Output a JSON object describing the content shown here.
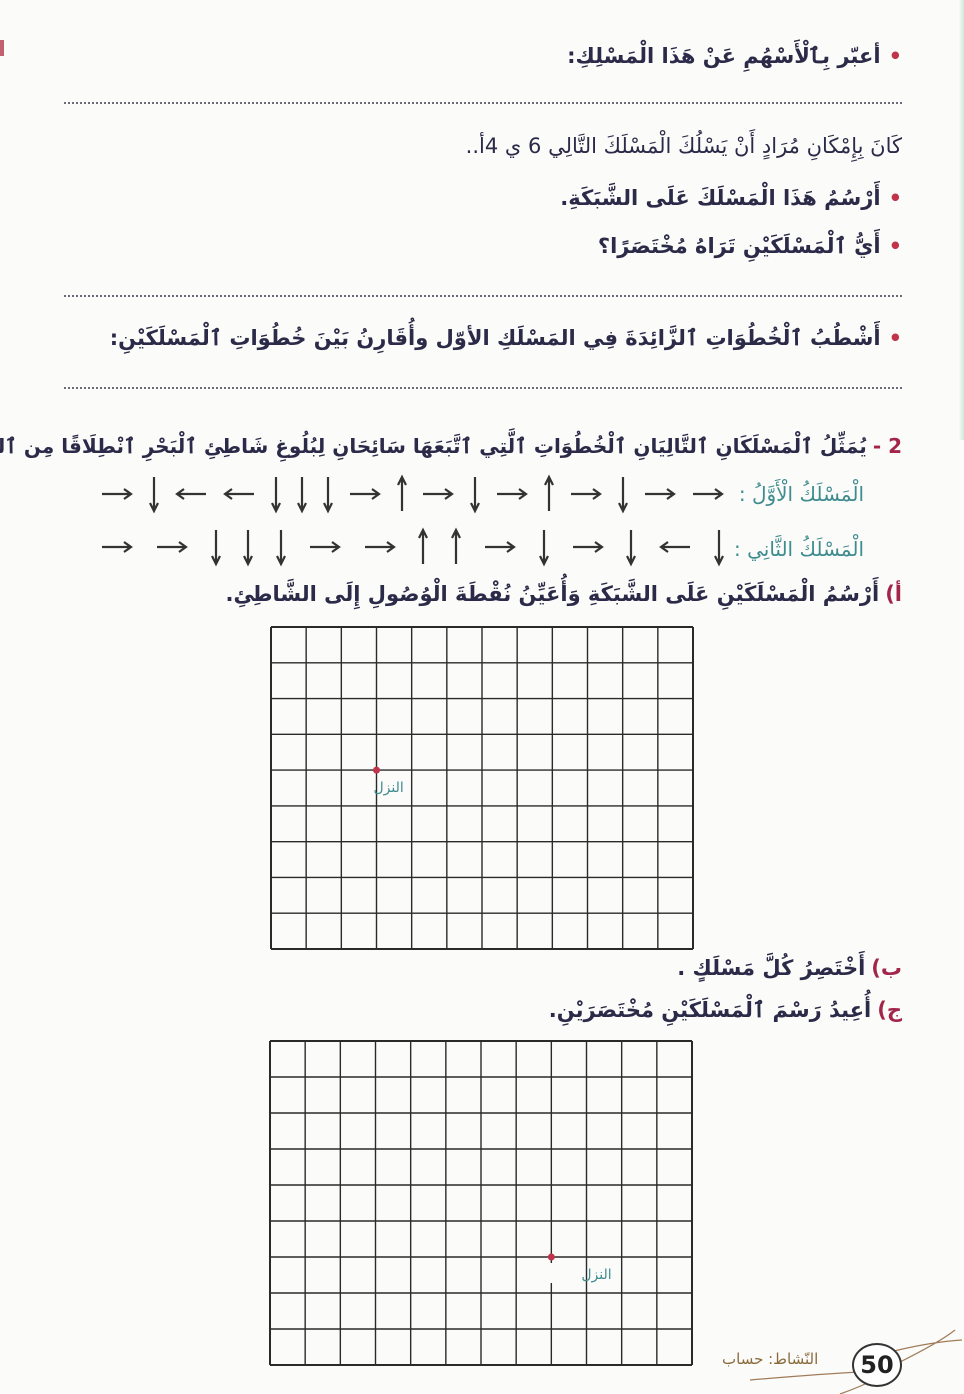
{
  "q1": {
    "express_with_arrows": "أعبّر بِٱلْأَسْهُمِ عَنْ هَذَا الْمَسْلِكِ:",
    "intro": "كَانَ بِإِمْكَانِ مُرَادٍ أَنْ يَسْلُكَ الْمَسْلَكَ التَّالِي 6 ي 4أ..",
    "draw_on_grid": "أَرْسُمُ هَذَا الْمَسْلَكَ عَلَى الشَّبَكَةِ.",
    "which_shorter": "أَيُّ ٱلْمَسْلَكَيْنِ تَرَاهُ مُخْتَصَرًا؟",
    "cross_out": "أَشْطُبُ ٱلْخُطُوَاتِ ٱلزَّائِدَةَ فِي المَسْلَكِ الأوّل وأُقَارِنُ بَيْنَ خُطُوَاتِ ٱلْمَسْلَكَيْنِ:"
  },
  "q2": {
    "number": "2 -",
    "statement": "يُمَثِّلُ ٱلْمَسْلَكَانِ ٱلتَّالِيَانِ ٱلْخُطُوَاتِ ٱلَّتِي ٱتَّبَعَهَا سَائِحَانِ لِبُلُوغِ شَاطِئِ ٱلْبَحْرِ ٱنْطِلَاقًا مِن ٱلنُّزُلِ.",
    "path1": {
      "label": "الْمَسْلَكُ الْأَوَّلُ :",
      "arrows_left_to_right": [
        "right",
        "down",
        "left",
        "left",
        "down",
        "down",
        "down",
        "right",
        "up",
        "right",
        "down",
        "right",
        "up",
        "right",
        "down",
        "right",
        "right"
      ]
    },
    "path2": {
      "label": "الْمَسْلَكُ الثَّانِي :",
      "arrows_left_to_right": [
        "right",
        "right",
        "down",
        "down",
        "down",
        "right",
        "right",
        "up",
        "up",
        "right",
        "down",
        "right",
        "down",
        "left",
        "down"
      ]
    },
    "part_a": {
      "marker": "أ)",
      "text": "أَرْسُمُ الْمَسْلَكَيْنِ عَلَى الشَّبَكَةِ وَأُعَيِّنُ نُقْطَةَ الْوُصُولِ إِلَى الشَّاطِئِ."
    },
    "part_b": {
      "marker": "ب)",
      "text": "أَخْتَصِرُ كُلَّ مَسْلَكٍ ."
    },
    "part_c": {
      "marker": "ج)",
      "text": "أُعِيدُ رَسْمَ ٱلْمَسْلَكَيْنِ مُخْتَصَرَيْنِ."
    },
    "grid1": {
      "columns": 12,
      "rows": 9,
      "start_label": "النزل",
      "start_col": 3,
      "start_row": 4
    },
    "grid2": {
      "columns": 12,
      "rows": 9,
      "start_label": "النزل",
      "start_col": 8,
      "start_row": 6
    }
  },
  "footer": {
    "activity": "النّشاط: حساب",
    "page_number": "50"
  },
  "colors": {
    "text": "#2b2a48",
    "bullet": "#c0334a",
    "path_label": "#3f8c8f",
    "start_dot": "#c0334a",
    "grid_line": "#2a2a2a"
  }
}
